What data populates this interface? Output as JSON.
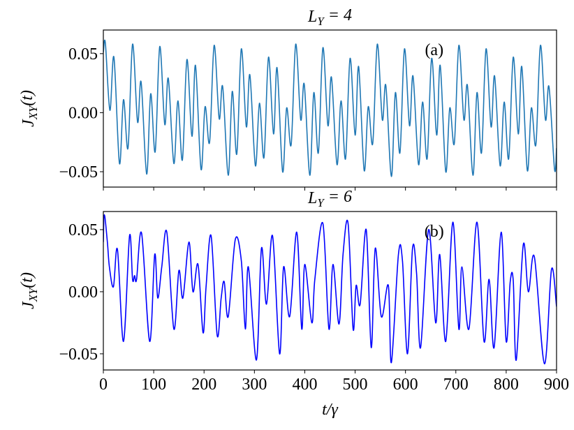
{
  "chart_data": [
    {
      "type": "line",
      "title": "L_Y = 4",
      "annotation": "(a)",
      "ylabel": "J_XY(t)",
      "color": "#1f77b4",
      "xtick_labels": false,
      "xlim": [
        0,
        900
      ],
      "xticks": [
        0,
        100,
        200,
        300,
        400,
        500,
        600,
        700,
        800,
        900
      ],
      "ylim": [
        -0.063,
        0.07
      ],
      "yticks": [
        {
          "value": -0.05,
          "label": "−0.05"
        },
        {
          "value": 0,
          "label": "0.00"
        },
        {
          "value": 0.05,
          "label": "0.05"
        }
      ],
      "x": [
        0,
        4,
        13,
        21,
        32,
        40,
        49,
        58,
        68,
        75,
        86,
        94,
        103,
        112,
        122,
        129,
        140,
        148,
        157,
        166,
        176,
        183,
        194,
        202,
        211,
        220,
        230,
        237,
        248,
        256,
        265,
        274,
        284,
        291,
        302,
        310,
        319,
        328,
        338,
        345,
        356,
        364,
        373,
        382,
        392,
        399,
        410,
        418,
        427,
        436,
        446,
        453,
        464,
        472,
        481,
        490,
        500,
        507,
        518,
        526,
        535,
        544,
        554,
        561,
        572,
        580,
        589,
        598,
        608,
        615,
        626,
        634,
        643,
        652,
        662,
        669,
        680,
        688,
        697,
        706,
        716,
        723,
        734,
        742,
        751,
        760,
        770,
        777,
        788,
        796,
        805,
        814,
        824,
        831,
        842,
        850,
        859,
        868,
        878,
        885,
        896,
        900
      ],
      "values": [
        0.051,
        0.059,
        0.002,
        0.047,
        -0.043,
        0.011,
        -0.03,
        0.058,
        -0.008,
        0.026,
        -0.052,
        0.016,
        -0.033,
        0.056,
        -0.01,
        0.029,
        -0.043,
        0.01,
        -0.04,
        0.045,
        -0.02,
        0.04,
        -0.048,
        0.005,
        -0.025,
        0.057,
        -0.005,
        0.022,
        -0.053,
        0.018,
        -0.035,
        0.054,
        -0.012,
        0.032,
        -0.045,
        0.008,
        -0.038,
        0.047,
        -0.018,
        0.038,
        -0.05,
        0.004,
        -0.027,
        0.058,
        -0.006,
        0.024,
        -0.053,
        0.017,
        -0.034,
        0.055,
        -0.011,
        0.03,
        -0.044,
        0.01,
        -0.039,
        0.046,
        -0.019,
        0.039,
        -0.049,
        0.005,
        -0.026,
        0.058,
        -0.006,
        0.023,
        -0.054,
        0.017,
        -0.034,
        0.054,
        -0.011,
        0.031,
        -0.044,
        0.009,
        -0.039,
        0.046,
        -0.019,
        0.04,
        -0.05,
        0.004,
        -0.026,
        0.057,
        -0.006,
        0.023,
        -0.053,
        0.017,
        -0.034,
        0.054,
        -0.012,
        0.031,
        -0.045,
        0.009,
        -0.039,
        0.047,
        -0.018,
        0.039,
        -0.049,
        0.004,
        -0.027,
        0.057,
        -0.006,
        0.022,
        -0.048,
        -0.03
      ]
    },
    {
      "type": "line",
      "title": "L_Y = 6",
      "annotation": "(b)",
      "ylabel": "J_XY(t)",
      "xlabel": "t/γ",
      "color": "#0000ff",
      "xtick_labels": true,
      "xlim": [
        0,
        900
      ],
      "xticks": [
        0,
        100,
        200,
        300,
        400,
        500,
        600,
        700,
        800,
        900
      ],
      "ylim": [
        -0.063,
        0.0646
      ],
      "yticks": [
        {
          "value": -0.05,
          "label": "−0.05"
        },
        {
          "value": 0,
          "label": "0.00"
        },
        {
          "value": 0.05,
          "label": "0.05"
        }
      ],
      "x": [
        0,
        2,
        8,
        12,
        20,
        28,
        40,
        52,
        58,
        62,
        66,
        76,
        92,
        102,
        108,
        116,
        126,
        140,
        150,
        158,
        170,
        178,
        188,
        198,
        204,
        214,
        226,
        234,
        240,
        248,
        262,
        274,
        282,
        288,
        304,
        314,
        324,
        336,
        350,
        358,
        370,
        384,
        394,
        400,
        414,
        420,
        436,
        448,
        456,
        468,
        476,
        486,
        496,
        502,
        510,
        522,
        532,
        540,
        552,
        566,
        572,
        586,
        594,
        604,
        614,
        622,
        630,
        646,
        660,
        668,
        680,
        694,
        706,
        712,
        726,
        742,
        756,
        766,
        776,
        790,
        800,
        808,
        814,
        820,
        834,
        844,
        856,
        876,
        890,
        900
      ],
      "values": [
        0.04,
        0.062,
        0.04,
        0.02,
        0.004,
        0.034,
        -0.04,
        0.045,
        0.01,
        0.013,
        0.01,
        0.047,
        -0.04,
        0.03,
        -0.005,
        0.02,
        0.048,
        -0.03,
        0.017,
        -0.005,
        0.04,
        0.0,
        0.022,
        -0.033,
        0.004,
        0.045,
        -0.035,
        -0.005,
        0.008,
        -0.02,
        0.042,
        0.025,
        -0.03,
        0.02,
        -0.055,
        0.035,
        -0.01,
        0.045,
        -0.05,
        0.02,
        -0.02,
        0.048,
        -0.03,
        0.022,
        -0.025,
        0.01,
        0.055,
        -0.03,
        0.022,
        -0.026,
        0.03,
        0.055,
        -0.03,
        0.005,
        -0.01,
        0.05,
        -0.045,
        0.035,
        -0.02,
        0.005,
        -0.057,
        0.03,
        0.025,
        -0.05,
        0.035,
        0.015,
        -0.045,
        0.05,
        -0.025,
        0.03,
        -0.04,
        0.056,
        -0.03,
        0.02,
        -0.03,
        0.056,
        -0.04,
        0.01,
        -0.045,
        0.048,
        -0.04,
        0.008,
        0.009,
        -0.055,
        0.038,
        0.0,
        0.028,
        -0.058,
        0.018,
        -0.012
      ]
    }
  ]
}
